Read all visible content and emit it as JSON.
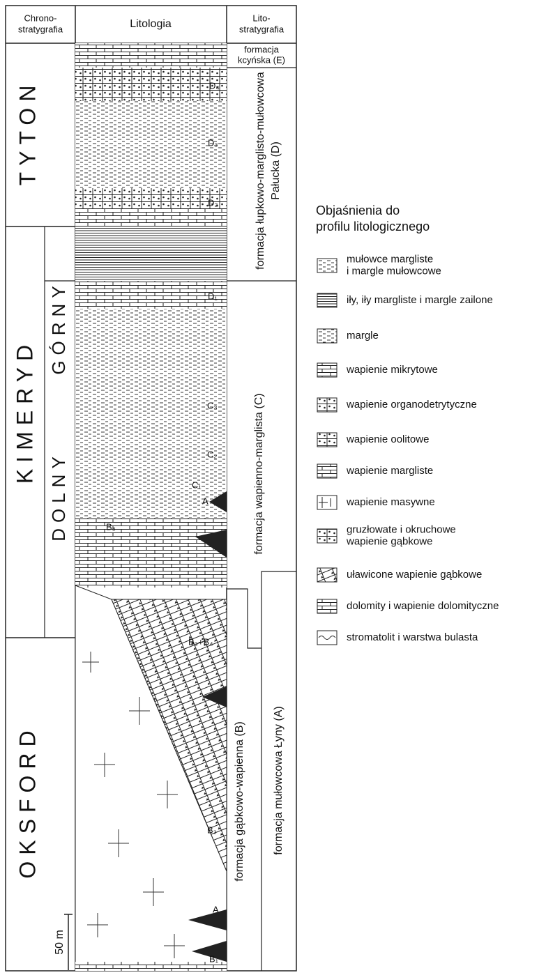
{
  "header": {
    "chronostratigraphy": [
      "Chrono-",
      "stratygrafia"
    ],
    "lithology": "Litologia",
    "lithostratigraphy": [
      "Lito-",
      "stratygrafia"
    ]
  },
  "chronostratigraphy": {
    "tyton": "TYTON",
    "kimeryd": "KIMERYD",
    "gorny": "GÓRNY",
    "dolny": "DOLNY",
    "oksford": "OKSFORD"
  },
  "lithostratigraphy": {
    "e": [
      "formacja",
      "kcyńska (E)"
    ],
    "d": [
      "formacja łupkowo-marglisto-mułowcowa",
      "Pałucka (D)"
    ],
    "c": "formacja wapienno-marglista (C)",
    "b": "formacja gąbkowo-wapienna (B)",
    "a": "formacja mułowcowa Łyny (A)"
  },
  "lithology_labels": [
    "D₄",
    "D₃",
    "D₂",
    "D₁",
    "C₃",
    "C₂",
    "C₁",
    "A",
    "B₅",
    "B₃+B₄",
    "B₂",
    "A",
    "B₁"
  ],
  "scale_bar": "50 m",
  "legend": {
    "title": [
      "Objaśnienia do",
      "profilu litologicznego"
    ],
    "items": [
      [
        "mułowce margliste",
        "i margle mułowcowe"
      ],
      [
        "iły, iły margliste i margle zailone"
      ],
      [
        "margle"
      ],
      [
        "wapienie mikrytowe"
      ],
      [
        "wapienie organodetrytyczne"
      ],
      [
        "wapienie oolitowe"
      ],
      [
        "wapienie margliste"
      ],
      [
        "wapienie masywne"
      ],
      [
        "gruzłowate i okruchowe",
        "wapienie gąbkowe"
      ],
      [
        "uławicone wapienie gąbkowe"
      ],
      [
        "dolomity i wapienie dolomityczne"
      ],
      [
        "stromatolit i warstwa bulasta"
      ]
    ]
  }
}
